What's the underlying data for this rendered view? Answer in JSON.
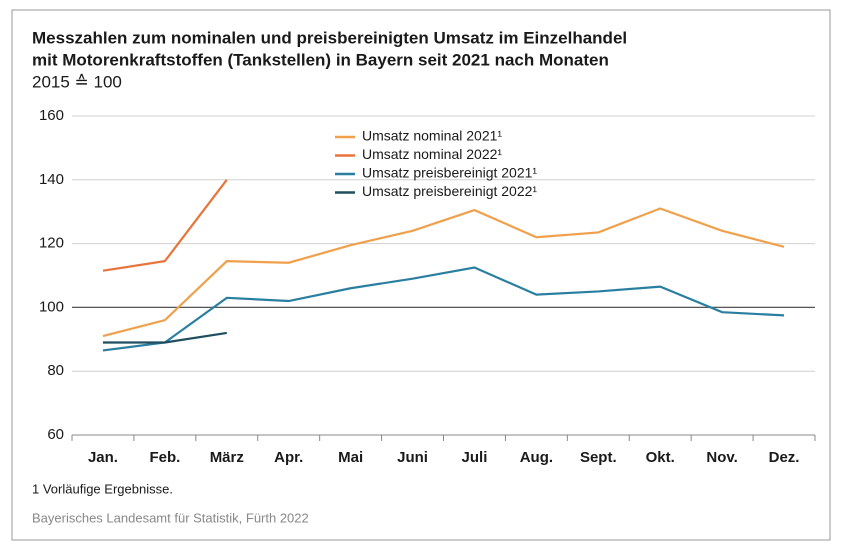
{
  "chart_data": {
    "type": "line",
    "title": [
      "Messzahlen zum nominalen und preisbereinigten Umsatz im Einzelhandel",
      "mit Motorenkraftstoffen (Tankstellen) in Bayern seit 2021 nach Monaten"
    ],
    "subtitle": "2015 ≙ 100",
    "categories": [
      "Jan.",
      "Feb.",
      "März",
      "Apr.",
      "Mai",
      "Juni",
      "Juli",
      "Aug.",
      "Sept.",
      "Okt.",
      "Nov.",
      "Dez."
    ],
    "series": [
      {
        "name": "Umsatz nominal 2021¹",
        "color": "#f0a04b",
        "values": [
          91,
          96,
          114.5,
          114,
          119.5,
          124,
          130.5,
          122,
          123.5,
          131,
          124,
          119
        ]
      },
      {
        "name": "Umsatz nominal 2022¹",
        "color": "#e8743b",
        "values": [
          111.5,
          114.5,
          140,
          null,
          null,
          null,
          null,
          null,
          null,
          null,
          null,
          null
        ]
      },
      {
        "name": "Umsatz preisbereinigt 2021¹",
        "color": "#2a7fa0",
        "values": [
          86.5,
          89,
          103,
          102,
          106,
          109,
          112.5,
          104,
          105,
          106.5,
          98.5,
          97.5
        ]
      },
      {
        "name": "Umsatz preisbereinigt 2022¹",
        "color": "#1f4e5f",
        "values": [
          89,
          89,
          92,
          null,
          null,
          null,
          null,
          null,
          null,
          null,
          null,
          null
        ]
      }
    ],
    "ylim": [
      60,
      160
    ],
    "yticks": [
      60,
      80,
      100,
      120,
      140,
      160
    ],
    "grid": true,
    "baseline": 100,
    "footnote": "1  Vorläufige Ergebnisse.",
    "source": "Bayerisches Landesamt für Statistik, Fürth 2022"
  }
}
